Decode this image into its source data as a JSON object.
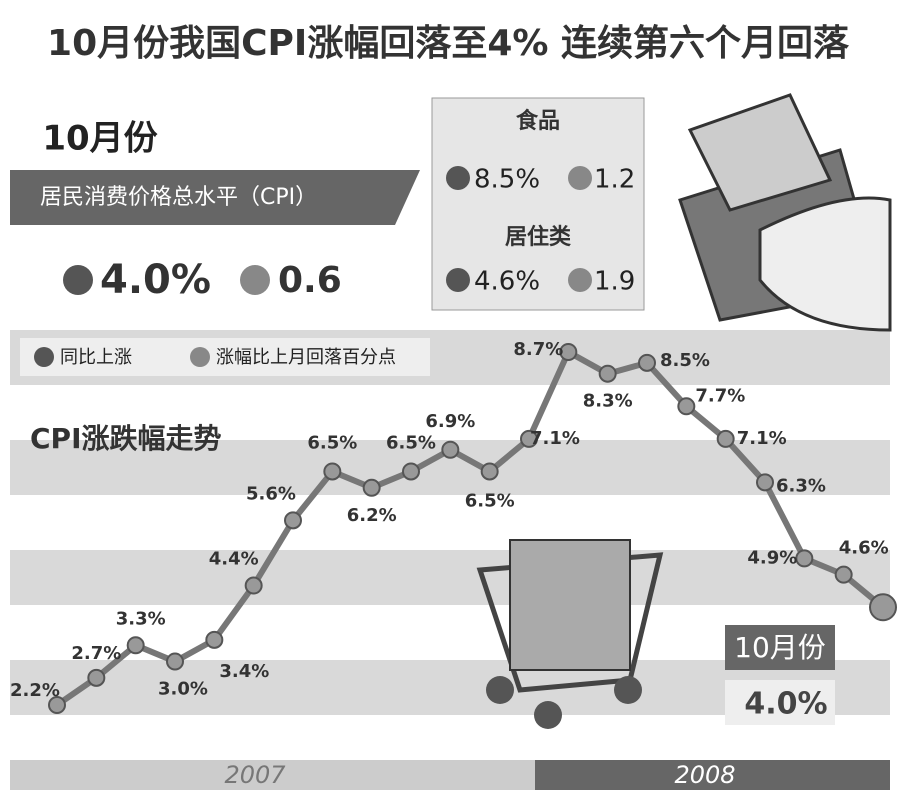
{
  "header": {
    "title": "10月份我国CPI涨幅回落至4%  连续第六个月回落"
  },
  "summary": {
    "month": "10月份",
    "label": "居民消费价格总水平（CPI）",
    "yoy": "4.0%",
    "drop": "0.6"
  },
  "panel": [
    {
      "name": "食品",
      "yoy": "8.5%",
      "drop": "1.2"
    },
    {
      "name": "居住类",
      "yoy": "4.6%",
      "drop": "1.9"
    }
  ],
  "legend": {
    "up": "同比上涨",
    "down": "涨幅比上月回落百分点"
  },
  "chart_data": {
    "type": "line",
    "title": "CPI涨跌幅走势",
    "categories": [
      null,
      null,
      null,
      null,
      null,
      null,
      null,
      null,
      null,
      null,
      null,
      null,
      null,
      null,
      null,
      null,
      null,
      null,
      null,
      null,
      null,
      null
    ],
    "values": [
      2.2,
      2.7,
      3.3,
      3.0,
      3.4,
      4.4,
      5.6,
      6.5,
      6.2,
      6.5,
      6.9,
      6.5,
      7.1,
      8.7,
      8.3,
      8.5,
      7.7,
      7.1,
      6.3,
      4.9,
      4.6,
      4.0
    ],
    "value_labels": [
      "2.2%",
      "2.7%",
      "3.3%",
      "3.0%",
      "3.4%",
      "4.4%",
      "5.6%",
      "6.5%",
      "6.2%",
      "6.5%",
      "6.9%",
      "6.5%",
      "7.1%",
      "8.7%",
      "8.3%",
      "8.5%",
      "7.7%",
      "7.1%",
      "6.3%",
      "4.9%",
      "4.6%",
      "4.0%"
    ],
    "color": "#777777",
    "periods": [
      "2007",
      "2008"
    ],
    "callout": "10月份"
  }
}
